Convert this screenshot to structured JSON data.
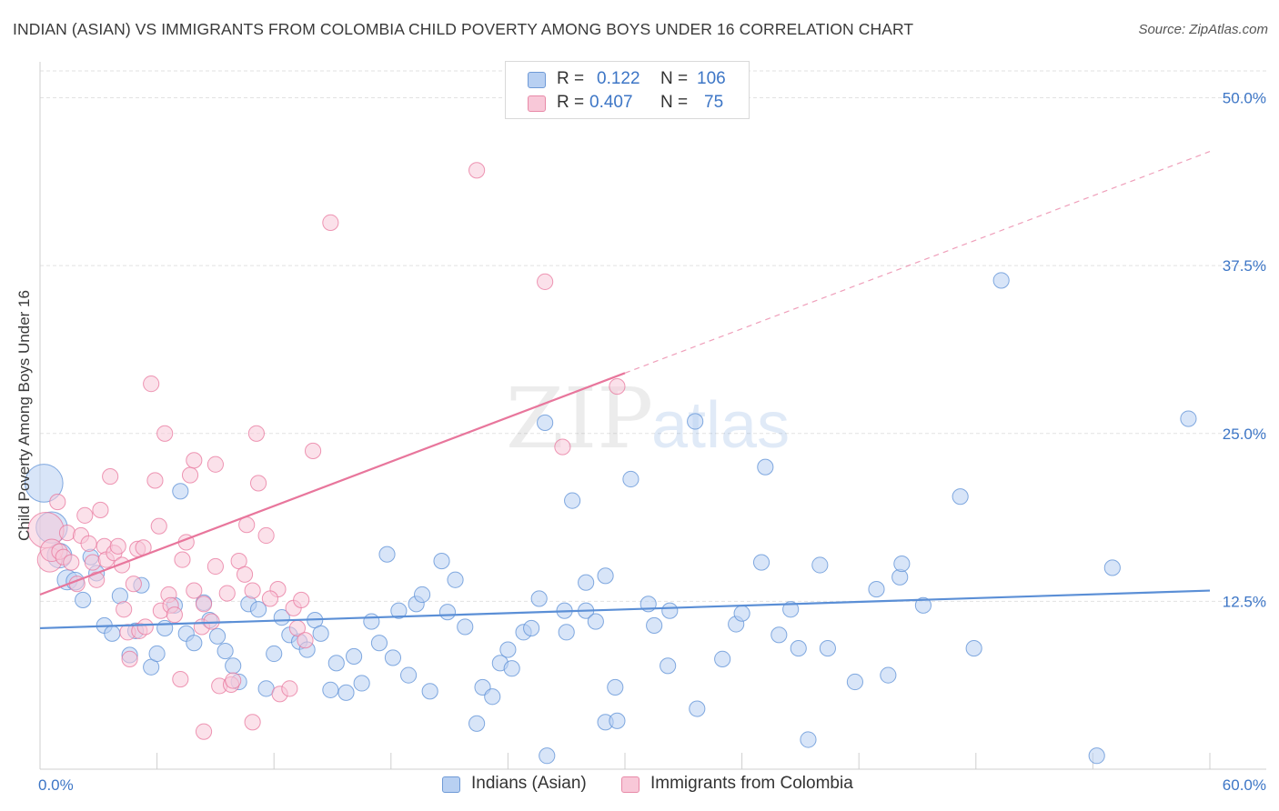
{
  "title": "INDIAN (ASIAN) VS IMMIGRANTS FROM COLOMBIA CHILD POVERTY AMONG BOYS UNDER 16 CORRELATION CHART",
  "source": "Source: ZipAtlas.com",
  "watermark": {
    "zip": "ZIP",
    "atlas": "atlas"
  },
  "legend": {
    "r_label": "R =",
    "n_label": "N =",
    "rows": [
      {
        "r": "0.122",
        "n": "106"
      },
      {
        "r": "0.407",
        "n": "75"
      }
    ]
  },
  "colors": {
    "blue": "#5b8fd6",
    "pink": "#e8769c",
    "blue_fill": "#b8d0f2",
    "pink_fill": "#f8c8d8"
  },
  "chart_data": {
    "type": "scatter",
    "xlabel": "",
    "ylabel": "Child Poverty Among Boys Under 16",
    "xlim": [
      0,
      60
    ],
    "ylim": [
      0,
      52
    ],
    "x_tick_labels": [
      {
        "value": 0,
        "label": "0.0%"
      },
      {
        "value": 60,
        "label": "60.0%"
      }
    ],
    "y_tick_labels": [
      {
        "value": 12.5,
        "label": "12.5%"
      },
      {
        "value": 25,
        "label": "25.0%"
      },
      {
        "value": 37.5,
        "label": "37.5%"
      },
      {
        "value": 50,
        "label": "50.0%"
      }
    ],
    "x_minor_ticks": [
      0,
      6,
      12,
      18,
      24,
      30,
      36,
      42,
      48,
      54,
      60
    ],
    "grid": true,
    "series": [
      {
        "name": "Indians (Asian)",
        "color": "#5b8fd6",
        "r": 0.122,
        "n": 106,
        "trend": {
          "x0": 0,
          "y0": 10.5,
          "x1": 60,
          "y1": 13.3,
          "dashed_to": null
        },
        "points": [
          [
            0.2,
            21.3,
            1.7
          ],
          [
            0.6,
            18.0,
            1.4
          ],
          [
            1.0,
            15.9,
            1.1
          ],
          [
            1.4,
            14.1,
            0.9
          ],
          [
            1.8,
            14.0,
            0.8
          ],
          [
            2.2,
            12.6,
            0.7
          ],
          [
            2.6,
            15.8,
            0.7
          ],
          [
            2.9,
            14.6,
            0.7
          ],
          [
            3.3,
            10.7,
            0.7
          ],
          [
            3.7,
            10.1,
            0.7
          ],
          [
            4.1,
            12.9,
            0.7
          ],
          [
            4.6,
            8.5,
            0.7
          ],
          [
            4.9,
            10.3,
            0.7
          ],
          [
            5.2,
            13.7,
            0.7
          ],
          [
            5.7,
            7.6,
            0.7
          ],
          [
            6.0,
            8.6,
            0.7
          ],
          [
            6.4,
            10.5,
            0.7
          ],
          [
            6.9,
            12.2,
            0.7
          ],
          [
            7.2,
            20.7,
            0.7
          ],
          [
            7.5,
            10.1,
            0.7
          ],
          [
            7.9,
            9.4,
            0.7
          ],
          [
            8.4,
            12.4,
            0.7
          ],
          [
            8.7,
            11.1,
            0.7
          ],
          [
            9.1,
            9.9,
            0.7
          ],
          [
            9.5,
            8.8,
            0.7
          ],
          [
            9.9,
            7.7,
            0.7
          ],
          [
            10.2,
            6.5,
            0.7
          ],
          [
            10.7,
            12.3,
            0.7
          ],
          [
            11.2,
            11.9,
            0.7
          ],
          [
            11.6,
            6.0,
            0.7
          ],
          [
            12.0,
            8.6,
            0.7
          ],
          [
            12.4,
            11.3,
            0.7
          ],
          [
            12.8,
            10.0,
            0.7
          ],
          [
            13.3,
            9.5,
            0.7
          ],
          [
            13.7,
            8.9,
            0.7
          ],
          [
            14.1,
            11.1,
            0.7
          ],
          [
            14.4,
            10.1,
            0.7
          ],
          [
            14.9,
            5.9,
            0.7
          ],
          [
            15.2,
            7.9,
            0.7
          ],
          [
            15.7,
            5.7,
            0.7
          ],
          [
            16.1,
            8.4,
            0.7
          ],
          [
            16.5,
            6.4,
            0.7
          ],
          [
            17.0,
            11.0,
            0.7
          ],
          [
            17.4,
            9.4,
            0.7
          ],
          [
            17.8,
            16.0,
            0.7
          ],
          [
            18.1,
            8.3,
            0.7
          ],
          [
            18.4,
            11.8,
            0.7
          ],
          [
            18.9,
            7.0,
            0.7
          ],
          [
            19.3,
            12.3,
            0.7
          ],
          [
            19.6,
            13.0,
            0.7
          ],
          [
            20.0,
            5.8,
            0.7
          ],
          [
            20.6,
            15.5,
            0.7
          ],
          [
            20.9,
            11.7,
            0.7
          ],
          [
            21.3,
            14.1,
            0.7
          ],
          [
            21.8,
            10.6,
            0.7
          ],
          [
            22.4,
            3.4,
            0.7
          ],
          [
            22.7,
            6.1,
            0.7
          ],
          [
            23.2,
            5.4,
            0.7
          ],
          [
            23.6,
            7.9,
            0.7
          ],
          [
            24.0,
            8.9,
            0.7
          ],
          [
            24.2,
            7.5,
            0.7
          ],
          [
            24.8,
            10.2,
            0.7
          ],
          [
            25.2,
            10.5,
            0.7
          ],
          [
            25.6,
            12.7,
            0.7
          ],
          [
            25.9,
            25.8,
            0.7
          ],
          [
            26.0,
            1.0,
            0.7
          ],
          [
            26.9,
            11.8,
            0.7
          ],
          [
            27.0,
            10.2,
            0.7
          ],
          [
            27.3,
            20.0,
            0.7
          ],
          [
            28.0,
            13.9,
            0.7
          ],
          [
            28.0,
            11.8,
            0.7
          ],
          [
            28.5,
            11.0,
            0.7
          ],
          [
            29.0,
            3.5,
            0.7
          ],
          [
            29.0,
            14.4,
            0.7
          ],
          [
            29.6,
            3.6,
            0.7
          ],
          [
            29.5,
            6.1,
            0.7
          ],
          [
            30.3,
            21.6,
            0.7
          ],
          [
            31.2,
            12.3,
            0.7
          ],
          [
            31.5,
            10.7,
            0.7
          ],
          [
            32.2,
            7.7,
            0.7
          ],
          [
            32.3,
            11.8,
            0.7
          ],
          [
            33.6,
            25.9,
            0.7
          ],
          [
            33.7,
            4.5,
            0.7
          ],
          [
            35.0,
            8.2,
            0.7
          ],
          [
            35.7,
            10.8,
            0.7
          ],
          [
            36.0,
            11.6,
            0.7
          ],
          [
            37.0,
            15.4,
            0.7
          ],
          [
            37.2,
            22.5,
            0.7
          ],
          [
            37.9,
            10.0,
            0.7
          ],
          [
            38.5,
            11.9,
            0.7
          ],
          [
            38.9,
            9.0,
            0.7
          ],
          [
            39.4,
            2.2,
            0.7
          ],
          [
            40.0,
            15.2,
            0.7
          ],
          [
            40.4,
            9.0,
            0.7
          ],
          [
            41.8,
            6.5,
            0.7
          ],
          [
            42.9,
            13.4,
            0.7
          ],
          [
            43.5,
            7.0,
            0.7
          ],
          [
            44.1,
            14.3,
            0.7
          ],
          [
            44.2,
            15.3,
            0.7
          ],
          [
            45.3,
            12.2,
            0.7
          ],
          [
            47.2,
            20.3,
            0.7
          ],
          [
            47.9,
            9.0,
            0.7
          ],
          [
            49.3,
            36.4,
            0.7
          ],
          [
            54.2,
            1.0,
            0.7
          ],
          [
            55.0,
            15.0,
            0.7
          ],
          [
            58.9,
            26.1,
            0.7
          ]
        ]
      },
      {
        "name": "Immigrants from Colombia",
        "color": "#e8769c",
        "r": 0.407,
        "n": 75,
        "trend": {
          "x0": 0,
          "y0": 13.0,
          "x1": 30,
          "y1": 29.5,
          "dashed_to": {
            "x": 60,
            "y": 46.0
          }
        },
        "points": [
          [
            0.3,
            17.8,
            1.6
          ],
          [
            0.5,
            15.6,
            1.1
          ],
          [
            0.6,
            16.3,
            1.0
          ],
          [
            0.9,
            19.9,
            0.7
          ],
          [
            1.0,
            16.2,
            0.7
          ],
          [
            1.2,
            15.8,
            0.7
          ],
          [
            1.4,
            17.6,
            0.7
          ],
          [
            1.6,
            15.4,
            0.7
          ],
          [
            1.9,
            13.8,
            0.7
          ],
          [
            2.1,
            17.4,
            0.7
          ],
          [
            2.3,
            18.9,
            0.7
          ],
          [
            2.5,
            16.8,
            0.7
          ],
          [
            2.7,
            15.4,
            0.7
          ],
          [
            2.9,
            14.1,
            0.7
          ],
          [
            3.1,
            19.3,
            0.7
          ],
          [
            3.3,
            16.6,
            0.7
          ],
          [
            3.4,
            15.6,
            0.7
          ],
          [
            3.6,
            21.8,
            0.7
          ],
          [
            3.8,
            16.1,
            0.7
          ],
          [
            4.0,
            16.6,
            0.7
          ],
          [
            4.2,
            15.2,
            0.7
          ],
          [
            4.3,
            11.9,
            0.7
          ],
          [
            4.5,
            10.2,
            0.7
          ],
          [
            4.6,
            8.2,
            0.7
          ],
          [
            4.8,
            13.8,
            0.7
          ],
          [
            5.0,
            16.4,
            0.7
          ],
          [
            5.1,
            10.3,
            0.7
          ],
          [
            5.3,
            16.5,
            0.7
          ],
          [
            5.4,
            10.6,
            0.7
          ],
          [
            5.7,
            28.7,
            0.7
          ],
          [
            5.9,
            21.5,
            0.7
          ],
          [
            6.1,
            18.1,
            0.7
          ],
          [
            6.2,
            11.8,
            0.7
          ],
          [
            6.4,
            25.0,
            0.7
          ],
          [
            6.6,
            13.0,
            0.7
          ],
          [
            6.7,
            12.2,
            0.7
          ],
          [
            6.9,
            11.5,
            0.7
          ],
          [
            7.2,
            6.7,
            0.7
          ],
          [
            7.3,
            15.6,
            0.7
          ],
          [
            7.5,
            16.9,
            0.7
          ],
          [
            7.7,
            21.9,
            0.7
          ],
          [
            7.9,
            13.3,
            0.7
          ],
          [
            7.9,
            23.0,
            0.7
          ],
          [
            8.3,
            10.6,
            0.7
          ],
          [
            8.4,
            12.3,
            0.7
          ],
          [
            8.4,
            2.8,
            0.7
          ],
          [
            8.8,
            11.0,
            0.7
          ],
          [
            9.0,
            15.1,
            0.7
          ],
          [
            9.0,
            22.7,
            0.7
          ],
          [
            9.2,
            6.2,
            0.7
          ],
          [
            9.6,
            13.1,
            0.7
          ],
          [
            9.8,
            6.3,
            0.7
          ],
          [
            9.9,
            6.6,
            0.7
          ],
          [
            10.2,
            15.5,
            0.7
          ],
          [
            10.5,
            14.5,
            0.7
          ],
          [
            10.6,
            18.2,
            0.7
          ],
          [
            10.9,
            3.5,
            0.7
          ],
          [
            10.9,
            13.3,
            0.7
          ],
          [
            11.1,
            25.0,
            0.7
          ],
          [
            11.2,
            21.3,
            0.7
          ],
          [
            11.6,
            17.4,
            0.7
          ],
          [
            12.3,
            5.6,
            0.7
          ],
          [
            14.0,
            23.7,
            0.7
          ],
          [
            12.8,
            6.0,
            0.7
          ],
          [
            13.0,
            12.0,
            0.7
          ],
          [
            13.2,
            10.5,
            0.7
          ],
          [
            13.4,
            12.6,
            0.7
          ],
          [
            13.6,
            9.6,
            0.7
          ],
          [
            12.2,
            13.4,
            0.7
          ],
          [
            11.8,
            12.7,
            0.7
          ],
          [
            14.9,
            40.7,
            0.7
          ],
          [
            22.4,
            44.6,
            0.7
          ],
          [
            25.9,
            36.3,
            0.7
          ],
          [
            29.6,
            28.5,
            0.7
          ],
          [
            26.8,
            24.0,
            0.7
          ]
        ]
      }
    ]
  },
  "bottom_legend": [
    "Indians (Asian)",
    "Immigrants from Colombia"
  ]
}
